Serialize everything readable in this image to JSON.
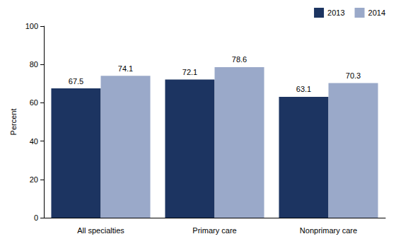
{
  "chart_data": {
    "type": "bar",
    "categories": [
      "All specialties",
      "Primary care",
      "Nonprimary care"
    ],
    "series": [
      {
        "name": "2013",
        "color": "#1c3461",
        "values": [
          67.5,
          72.1,
          63.1
        ]
      },
      {
        "name": "2014",
        "color": "#9aa9c9",
        "values": [
          74.1,
          78.6,
          70.3
        ]
      }
    ],
    "ylabel": "Percent",
    "ylim": [
      0,
      100
    ],
    "yticks": [
      0,
      20,
      40,
      60,
      80,
      100
    ],
    "grid": false,
    "legend": "upper right",
    "data_labels": true
  }
}
